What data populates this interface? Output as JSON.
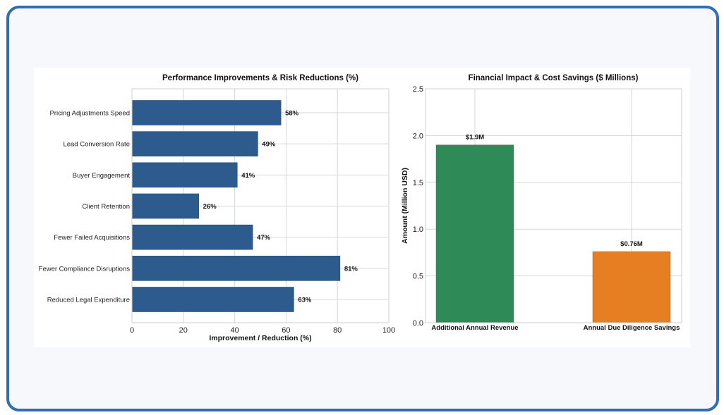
{
  "chart_data": [
    {
      "type": "bar",
      "orientation": "horizontal",
      "title": "Performance Improvements & Risk Reductions (%)",
      "xlabel": "Improvement / Reduction (%)",
      "ylabel": "",
      "xlim": [
        0,
        100
      ],
      "xticks": [
        "0",
        "20",
        "40",
        "60",
        "80",
        "100"
      ],
      "categories": [
        "Pricing Adjustments Speed",
        "Lead Conversion Rate",
        "Buyer Engagement",
        "Client Retention",
        "Fewer Failed Acquisitions",
        "Fewer Compliance Disruptions",
        "Reduced Legal Expenditure"
      ],
      "values": [
        58,
        49,
        41,
        26,
        47,
        81,
        63
      ],
      "data_labels": [
        "58%",
        "49%",
        "41%",
        "26%",
        "47%",
        "81%",
        "63%"
      ],
      "color": "#2d5b8e",
      "grid": true
    },
    {
      "type": "bar",
      "orientation": "vertical",
      "title": "Financial Impact & Cost Savings ($ Millions)",
      "xlabel": "",
      "ylabel": "Amount (Million USD)",
      "ylim": [
        0,
        2.5
      ],
      "yticks": [
        "0.0",
        "0.5",
        "1.0",
        "1.5",
        "2.0",
        "2.5"
      ],
      "categories": [
        "Additional Annual Revenue",
        "Annual Due Diligence Savings"
      ],
      "values": [
        1.9,
        0.76
      ],
      "data_labels": [
        "$1.9M",
        "$0.76M"
      ],
      "colors": [
        "#2e8b57",
        "#e67e22"
      ],
      "grid": true
    }
  ]
}
